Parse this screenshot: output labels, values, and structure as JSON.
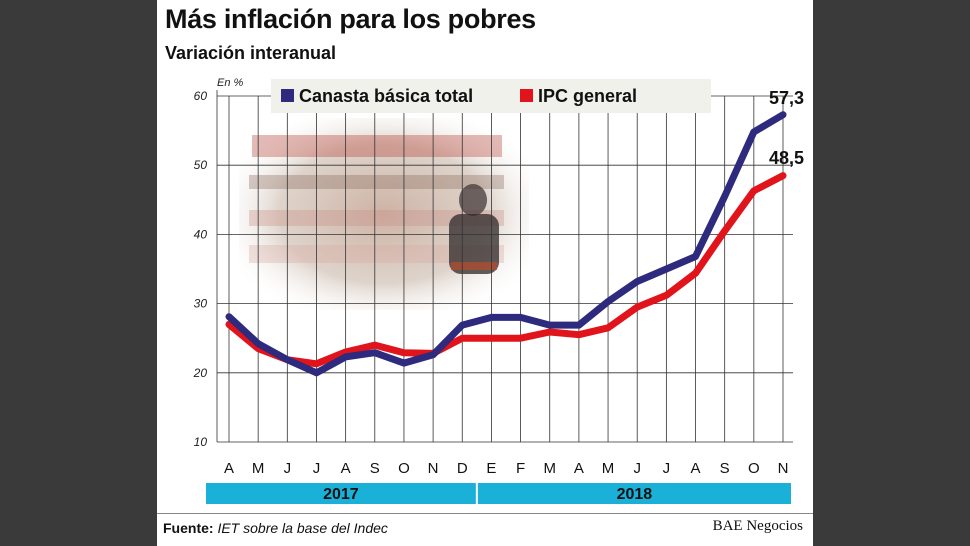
{
  "title": "Más inflación para los pobres",
  "subtitle": "Variación interanual",
  "source_label": "Fuente:",
  "source_text": "IET sobre la base del Indec",
  "credit": "BAE Negocios",
  "chart_data": {
    "type": "line",
    "yunit": "En %",
    "ylim": [
      10,
      60
    ],
    "yticks": [
      10,
      20,
      30,
      40,
      50,
      60
    ],
    "grid": true,
    "legend_position": "top",
    "categories": [
      "A",
      "M",
      "J",
      "J",
      "A",
      "S",
      "O",
      "N",
      "D",
      "E",
      "F",
      "M",
      "A",
      "M",
      "J",
      "J",
      "A",
      "S",
      "O",
      "N"
    ],
    "year_bands": [
      {
        "label": "2017",
        "start": 0,
        "end": 8
      },
      {
        "label": "2018",
        "start": 9,
        "end": 19
      }
    ],
    "series": [
      {
        "name": "Canasta básica total",
        "color": "#2e2a7e",
        "values": [
          28.1,
          24.2,
          21.9,
          20.0,
          22.3,
          22.9,
          21.4,
          22.6,
          26.9,
          28.0,
          28.0,
          26.9,
          26.9,
          30.3,
          33.2,
          35.0,
          36.8,
          45.5,
          54.8,
          57.3
        ]
      },
      {
        "name": "IPC general",
        "color": "#e0141a",
        "values": [
          27.0,
          23.5,
          21.9,
          21.3,
          23.0,
          24.0,
          22.9,
          22.8,
          25.0,
          25.0,
          25.0,
          25.9,
          25.5,
          26.5,
          29.5,
          31.2,
          34.4,
          40.5,
          46.3,
          48.5
        ]
      }
    ],
    "end_labels": [
      "57,3",
      "48,5"
    ]
  },
  "colors": {
    "year_band": "#1bb0d8",
    "grid": "#333333"
  },
  "icons": {
    "background_photo": "supermarket-shopper-photo"
  }
}
